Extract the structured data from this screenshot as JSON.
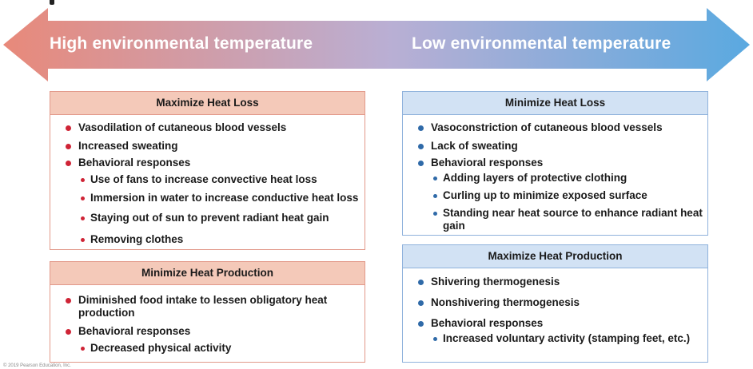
{
  "colors": {
    "arrow_warm": "#e8897a",
    "arrow_mid": "#b9afd4",
    "arrow_cool": "#5aa9e0",
    "warm_header": "#f4c9b9",
    "cool_header": "#d2e2f4",
    "warm_bullet": "#cf2436",
    "cool_bullet": "#2f6aa8"
  },
  "arrow": {
    "left_label": "High environmental temperature",
    "right_label": "Low environmental temperature"
  },
  "maximize_heat_loss": {
    "title": "Maximize Heat Loss",
    "items": [
      "Vasodilation of cutaneous blood vessels",
      "Increased sweating",
      "Behavioral responses"
    ],
    "sub_items": [
      "Use of fans to increase convective heat loss",
      "Immersion in water to increase conductive heat loss",
      "Staying out of sun to prevent radiant heat gain",
      "Removing clothes"
    ]
  },
  "minimize_heat_production": {
    "title": "Minimize Heat Production",
    "items": [
      "Diminished food intake to lessen obligatory heat production",
      "Behavioral responses"
    ],
    "sub_items": [
      "Decreased physical activity"
    ]
  },
  "minimize_heat_loss": {
    "title": "Minimize Heat Loss",
    "items": [
      "Vasoconstriction of cutaneous blood vessels",
      "Lack of sweating",
      "Behavioral responses"
    ],
    "sub_items": [
      "Adding layers of protective clothing",
      "Curling up to minimize exposed surface",
      "Standing near heat source to enhance radiant heat gain"
    ]
  },
  "maximize_heat_production": {
    "title": "Maximize Heat Production",
    "items": [
      "Shivering thermogenesis",
      "Nonshivering thermogenesis",
      "Behavioral responses"
    ],
    "sub_items": [
      "Increased voluntary activity (stamping feet, etc.)"
    ]
  },
  "footer": {
    "copyright": "© 2019 Pearson Education, Inc."
  }
}
